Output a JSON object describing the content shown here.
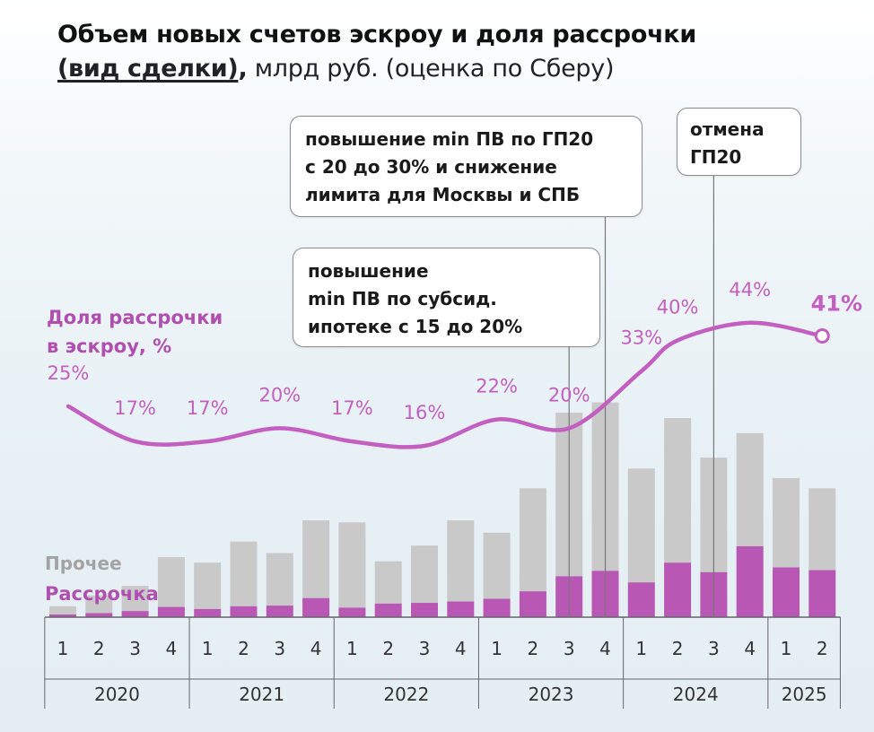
{
  "title": {
    "line1": "Объем новых счетов эскроу и доля рассрочки",
    "line2_bold": "(вид сделки)",
    "line2_sep": ",",
    "line2_rest": " млрд руб. (оценка по Сберу)"
  },
  "share_label": "Доля рассрочки\nв эскроу, %",
  "legend": {
    "other": "Прочее",
    "installment": "Рассрочка"
  },
  "annotations": [
    "повышение min ПВ по ГП20\nс 20 до 30% и снижение\nлимита для Москвы и СПБ",
    "повышение\nmin ПВ по субсид.\nипотеке с 15 до 20%",
    "отмена\nГП20"
  ],
  "colors": {
    "installment": "#b957b4",
    "other": "#c9c9c9",
    "line": "#c25fc0",
    "axis": "#666666"
  },
  "chart_data": {
    "type": "bar+line",
    "x_quarters": [
      "1",
      "2",
      "3",
      "4",
      "1",
      "2",
      "3",
      "4",
      "1",
      "2",
      "3",
      "4",
      "1",
      "2",
      "3",
      "4",
      "1",
      "2",
      "3",
      "4",
      "1",
      "2"
    ],
    "years": [
      {
        "label": "2020",
        "quarters": 4
      },
      {
        "label": "2021",
        "quarters": 4
      },
      {
        "label": "2022",
        "quarters": 4
      },
      {
        "label": "2023",
        "quarters": 4
      },
      {
        "label": "2024",
        "quarters": 4
      },
      {
        "label": "2025",
        "quarters": 2
      }
    ],
    "series": [
      {
        "name": "Рассрочка",
        "values": [
          4,
          6,
          9,
          15,
          12,
          16,
          17,
          28,
          14,
          20,
          21,
          23,
          27,
          38,
          60,
          68,
          51,
          80,
          66,
          104,
          73,
          69
        ]
      },
      {
        "name": "Прочее",
        "values": [
          12,
          26,
          37,
          73,
          68,
          95,
          77,
          114,
          125,
          62,
          84,
          119,
          97,
          151,
          240,
          247,
          167,
          212,
          168,
          166,
          131,
          120
        ]
      }
    ],
    "share_series": {
      "name": "Доля рассрочки в эскроу, %",
      "values": [
        25,
        17,
        17,
        20,
        17,
        16,
        22,
        20,
        33,
        40,
        44,
        41
      ],
      "labels": [
        "25%",
        "17%",
        "17%",
        "20%",
        "17%",
        "16%",
        "22%",
        "20%",
        "33%",
        "40%",
        "44%",
        "41%"
      ],
      "x_positions": [
        1,
        3,
        5,
        7,
        9,
        11,
        13,
        15,
        17,
        18,
        20,
        22
      ]
    },
    "annotation_quarters": [
      16,
      15,
      19
    ]
  }
}
